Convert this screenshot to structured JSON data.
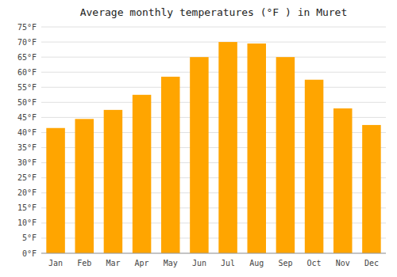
{
  "chart_data": {
    "type": "bar",
    "title": "Average monthly temperatures (°F ) in Muret",
    "categories": [
      "Jan",
      "Feb",
      "Mar",
      "Apr",
      "May",
      "Jun",
      "Jul",
      "Aug",
      "Sep",
      "Oct",
      "Nov",
      "Dec"
    ],
    "values": [
      41.5,
      44.5,
      47.5,
      52.5,
      58.5,
      65,
      70,
      69.5,
      65,
      57.5,
      48,
      42.5
    ],
    "color": "#FFA500",
    "ylim": [
      0,
      75
    ],
    "yticks": [
      {
        "value": 0,
        "label": "0°F"
      },
      {
        "value": 5,
        "label": "5°F"
      },
      {
        "value": 10,
        "label": "10°F"
      },
      {
        "value": 15,
        "label": "15°F"
      },
      {
        "value": 20,
        "label": "20°F"
      },
      {
        "value": 25,
        "label": "25°F"
      },
      {
        "value": 30,
        "label": "30°F"
      },
      {
        "value": 35,
        "label": "35°F"
      },
      {
        "value": 40,
        "label": "40°F"
      },
      {
        "value": 45,
        "label": "45°F"
      },
      {
        "value": 50,
        "label": "50°F"
      },
      {
        "value": 55,
        "label": "55°F"
      },
      {
        "value": 60,
        "label": "60°F"
      },
      {
        "value": 65,
        "label": "65°F"
      },
      {
        "value": 70,
        "label": "70°F"
      },
      {
        "value": 75,
        "label": "75°F"
      }
    ],
    "grid": true
  }
}
